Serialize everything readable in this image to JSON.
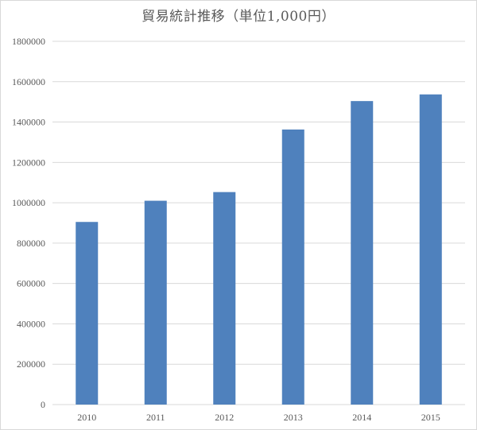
{
  "chart_data": {
    "type": "bar",
    "title": "貿易統計推移（単位1,000円）",
    "categories": [
      "2010",
      "2011",
      "2012",
      "2013",
      "2014",
      "2015"
    ],
    "values": [
      905000,
      1010000,
      1053000,
      1363000,
      1504000,
      1537000
    ],
    "ylim": [
      0,
      1800000
    ],
    "yticks": [
      "0",
      "200000",
      "400000",
      "600000",
      "800000",
      "1000000",
      "1200000",
      "1400000",
      "1600000",
      "1800000"
    ],
    "grid": true,
    "legend": "none",
    "bar_color": "#4f81bd",
    "grid_color": "#d9d9d9"
  }
}
